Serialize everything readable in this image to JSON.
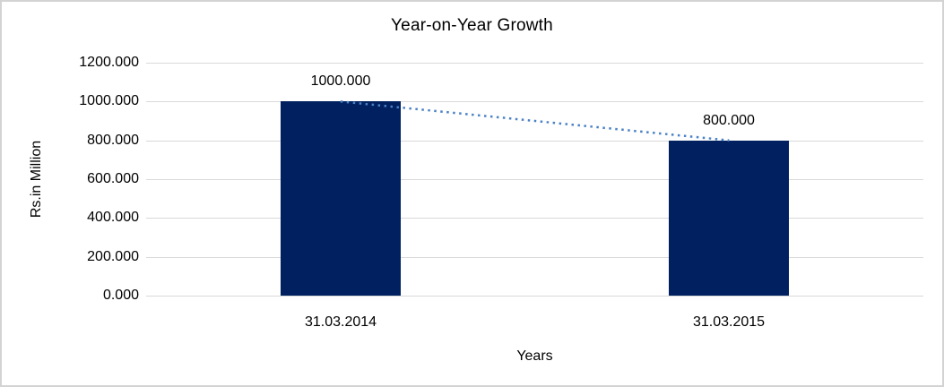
{
  "chart_data": {
    "type": "bar",
    "title": "Year-on-Year Growth",
    "xlabel": "Years",
    "ylabel": "Rs.in Million",
    "categories": [
      "31.03.2014",
      "31.03.2015"
    ],
    "values": [
      1000,
      800
    ],
    "value_labels": [
      "1000.000",
      "800.000"
    ],
    "ylim": [
      0,
      1200
    ],
    "ytick_step": 200,
    "ytick_labels": [
      "0.000",
      "200.000",
      "400.000",
      "600.000",
      "800.000",
      "1000.000",
      "1200.000"
    ],
    "grid": true,
    "legend": false,
    "bar_color": "#002060",
    "gridline_color": "#d9d9d9",
    "axis_line_color": "#d9d9d9",
    "text_color": "#000000",
    "frame_border_color": "#d3d3d3",
    "trendline": {
      "style": "dotted",
      "color": "#4a82c6",
      "from_value": 1000,
      "to_value": 800
    }
  }
}
